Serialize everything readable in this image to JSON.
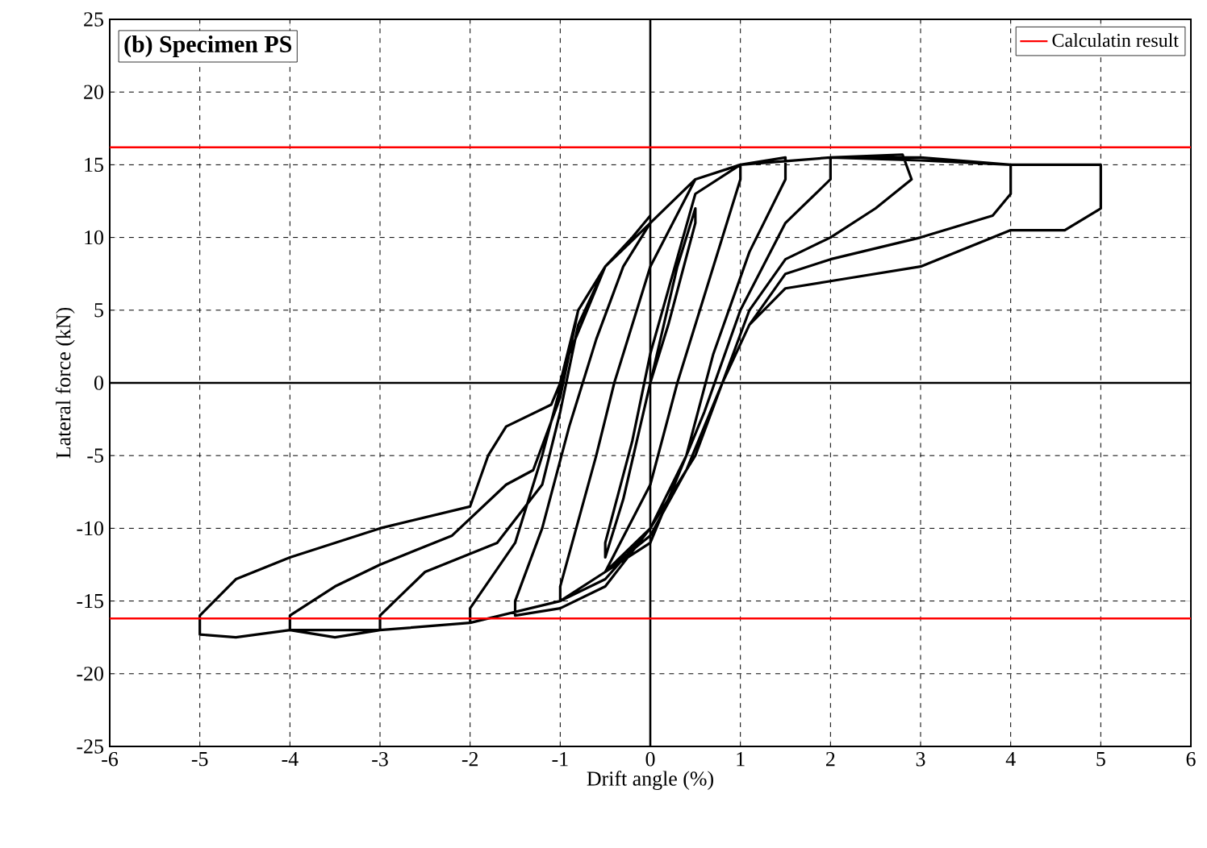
{
  "chart_data": {
    "type": "line",
    "xlabel": "Drift angle (%)",
    "ylabel": "Lateral force (kN)",
    "xlim": [
      -6,
      6
    ],
    "ylim": [
      -25,
      25
    ],
    "xticks": [
      -6,
      -5,
      -4,
      -3,
      -2,
      -1,
      0,
      1,
      2,
      3,
      4,
      5,
      6
    ],
    "yticks": [
      -25,
      -20,
      -15,
      -10,
      -5,
      0,
      5,
      10,
      15,
      20,
      25
    ],
    "grid": true,
    "legend": "top right",
    "annotations": [
      "(b) Specimen PS"
    ],
    "ref_lines": [
      {
        "axis": "y",
        "value": 16.2,
        "label": "Calculatin result",
        "color": "#ff0000"
      },
      {
        "axis": "y",
        "value": -16.2,
        "color": "#ff0000"
      }
    ],
    "series": [
      {
        "color": "#000000",
        "x": [
          0,
          0.3,
          0.5,
          0.5,
          0.2,
          0,
          -0.3,
          -0.5,
          -0.5,
          -0.2,
          0,
          0.5,
          1,
          1,
          0.6,
          0.3,
          0,
          -0.5,
          -1,
          -1,
          -0.6,
          -0.4,
          0,
          0.5,
          1,
          1.5,
          1.5,
          1.1,
          0.7,
          0.4,
          0,
          -0.5,
          -1,
          -1.5,
          -1.5,
          -1.2,
          -0.9,
          -0.6,
          -0.3,
          0,
          0.5,
          1,
          2,
          2,
          1.5,
          1,
          0.6,
          0.2,
          0,
          -0.5,
          -1,
          -2,
          -2,
          -1.5,
          -1.2,
          -0.9,
          -0.5,
          0,
          0.5,
          1,
          2,
          2.8,
          2.9,
          2.5,
          2,
          1.5,
          1.1,
          0.8,
          0.4,
          0,
          -0.5,
          -1,
          -2,
          -3,
          -3,
          -2.5,
          -1.7,
          -1.2,
          -1,
          -0.8,
          -0.5,
          0,
          0.5,
          1,
          2,
          3,
          4,
          4,
          3.8,
          3,
          2,
          1.5,
          1.1,
          0.8,
          0.4,
          0,
          -0.5,
          -1,
          -2,
          -3,
          -3.5,
          -4,
          -4,
          -3.5,
          -3,
          -2.2,
          -1.6,
          -1.3,
          -1,
          -0.8,
          -0.5,
          0,
          0.5,
          1,
          2,
          3,
          4,
          4.7,
          5,
          5,
          4.6,
          4,
          3,
          2,
          1.5,
          1.1,
          0.8,
          0.5,
          0.2,
          0,
          -0.5,
          -1,
          -2,
          -3,
          -4,
          -4.6,
          -5,
          -5,
          -4.6,
          -4,
          -3,
          -2,
          -1.8,
          -1.6,
          -1.1,
          -1,
          -0.8,
          -0.5,
          -0.2,
          0
        ],
        "values": [
          0,
          8,
          12,
          11,
          4,
          0,
          -8,
          -12,
          -11,
          -4,
          2,
          13,
          15,
          14,
          6,
          0,
          -7,
          -13,
          -15,
          -14,
          -5,
          0,
          8,
          14,
          15,
          15.5,
          14,
          9,
          2,
          -5,
          -10,
          -14,
          -15.5,
          -16,
          -15,
          -10,
          -3,
          3,
          8,
          11,
          14,
          15,
          15.5,
          14,
          11,
          5,
          -2,
          -8,
          -10,
          -13.5,
          -15,
          -16.5,
          -15.5,
          -11,
          -5,
          2,
          8,
          11,
          14,
          15,
          15.5,
          15.7,
          14,
          12,
          10,
          8.5,
          5,
          0,
          -6,
          -10,
          -13,
          -15,
          -16.5,
          -17,
          -16,
          -13,
          -11,
          -7,
          -2,
          4,
          8,
          11,
          14,
          15,
          15.5,
          15.3,
          15,
          13,
          11.5,
          10,
          8.5,
          7.5,
          4,
          0,
          -6,
          -10.5,
          -13,
          -15,
          -16.5,
          -17,
          -17.5,
          -17,
          -16,
          -14,
          -12.5,
          -10.5,
          -7,
          -6,
          -1,
          5,
          8,
          11,
          14,
          15,
          15.5,
          15.5,
          15,
          15,
          15,
          12,
          10.5,
          10.5,
          8,
          7,
          6.5,
          4,
          0,
          -5,
          -8,
          -11,
          -13,
          -15,
          -16.5,
          -17,
          -17,
          -17.5,
          -17.3,
          -16,
          -13.5,
          -12,
          -10,
          -8.5,
          -5,
          -3,
          -1.5,
          0,
          5,
          8,
          10,
          11.5
        ]
      }
    ]
  }
}
